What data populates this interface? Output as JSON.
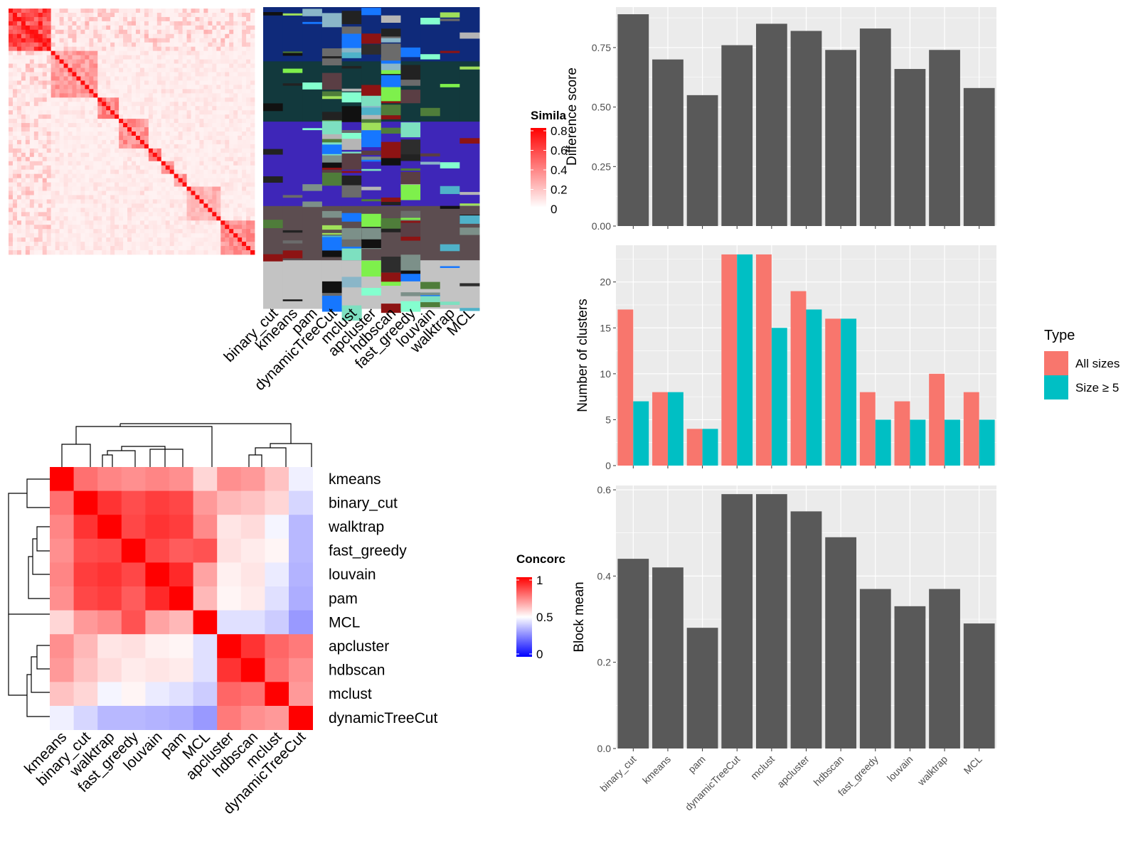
{
  "colors": {
    "panel_bg": "#EBEBEB",
    "bar_gray": "#595959",
    "all_sizes": "#F8766D",
    "size_ge5": "#00BFC4",
    "sim_high": "#FF0000",
    "sim_low": "#FFFFFF",
    "concord_high": "#FF0000",
    "concord_mid": "#FFFFFF",
    "concord_low": "#0000FF"
  },
  "similarity_heatmap": {
    "legend_title": "Simila",
    "legend_ticks": [
      "0.8",
      "0.6",
      "0.4",
      "0.2",
      "0"
    ],
    "method_labels": [
      "binary_cut",
      "kmeans",
      "pam",
      "dynamicTreeCut",
      "mclust",
      "apcluster",
      "hdbscan",
      "fast_greedy",
      "louvain",
      "walktrap",
      "MCL"
    ]
  },
  "concordance_heatmap": {
    "legend_title": "Concorc",
    "legend_ticks": [
      "1",
      "0.5",
      "0"
    ],
    "row_labels": [
      "kmeans",
      "binary_cut",
      "walktrap",
      "fast_greedy",
      "louvain",
      "pam",
      "MCL",
      "apcluster",
      "hdbscan",
      "mclust",
      "dynamicTreeCut"
    ],
    "col_labels": [
      "kmeans",
      "binary_cut",
      "walktrap",
      "fast_greedy",
      "louvain",
      "pam",
      "MCL",
      "apcluster",
      "hdbscan",
      "mclust",
      "dynamicTreeCut"
    ]
  },
  "legend_type": {
    "title": "Type",
    "items": [
      "All sizes",
      "Size ≥ 5"
    ]
  },
  "chart_data": [
    {
      "type": "heatmap",
      "title": "",
      "rows": [
        "kmeans",
        "binary_cut",
        "walktrap",
        "fast_greedy",
        "louvain",
        "pam",
        "MCL",
        "apcluster",
        "hdbscan",
        "mclust",
        "dynamicTreeCut"
      ],
      "cols": [
        "kmeans",
        "binary_cut",
        "walktrap",
        "fast_greedy",
        "louvain",
        "pam",
        "MCL",
        "apcluster",
        "hdbscan",
        "mclust",
        "dynamicTreeCut"
      ],
      "values": [
        [
          1.0,
          0.78,
          0.74,
          0.72,
          0.74,
          0.72,
          0.58,
          0.72,
          0.7,
          0.62,
          0.47
        ],
        [
          0.78,
          1.0,
          0.9,
          0.85,
          0.88,
          0.86,
          0.7,
          0.64,
          0.62,
          0.58,
          0.42
        ],
        [
          0.74,
          0.9,
          1.0,
          0.86,
          0.9,
          0.88,
          0.73,
          0.55,
          0.57,
          0.48,
          0.36
        ],
        [
          0.72,
          0.85,
          0.86,
          1.0,
          0.86,
          0.82,
          0.84,
          0.56,
          0.54,
          0.52,
          0.36
        ],
        [
          0.74,
          0.88,
          0.9,
          0.86,
          1.0,
          0.92,
          0.68,
          0.53,
          0.55,
          0.46,
          0.35
        ],
        [
          0.72,
          0.86,
          0.88,
          0.82,
          0.92,
          1.0,
          0.64,
          0.52,
          0.54,
          0.44,
          0.34
        ],
        [
          0.58,
          0.7,
          0.73,
          0.84,
          0.68,
          0.64,
          1.0,
          0.44,
          0.44,
          0.4,
          0.3
        ],
        [
          0.72,
          0.64,
          0.55,
          0.56,
          0.53,
          0.52,
          0.44,
          1.0,
          0.9,
          0.8,
          0.76
        ],
        [
          0.7,
          0.62,
          0.57,
          0.54,
          0.55,
          0.54,
          0.44,
          0.9,
          1.0,
          0.78,
          0.72
        ],
        [
          0.62,
          0.58,
          0.48,
          0.52,
          0.46,
          0.44,
          0.4,
          0.8,
          0.78,
          1.0,
          0.7
        ],
        [
          0.47,
          0.42,
          0.36,
          0.36,
          0.35,
          0.34,
          0.3,
          0.76,
          0.72,
          0.7,
          1.0
        ]
      ]
    },
    {
      "type": "bar",
      "title": "",
      "categories": [
        "binary_cut",
        "kmeans",
        "pam",
        "dynamicTreeCut",
        "mclust",
        "apcluster",
        "hdbscan",
        "fast_greedy",
        "louvain",
        "walktrap",
        "MCL"
      ],
      "values": [
        0.89,
        0.7,
        0.55,
        0.76,
        0.85,
        0.82,
        0.74,
        0.83,
        0.66,
        0.74,
        0.58
      ],
      "xlabel": "",
      "ylabel": "Difference score",
      "ylim": [
        0,
        0.92
      ],
      "yticks": [
        "0.00",
        "0.25",
        "0.50",
        "0.75"
      ]
    },
    {
      "type": "bar",
      "title": "",
      "categories": [
        "binary_cut",
        "kmeans",
        "pam",
        "dynamicTreeCut",
        "mclust",
        "apcluster",
        "hdbscan",
        "fast_greedy",
        "louvain",
        "walktrap",
        "MCL"
      ],
      "series": [
        {
          "name": "All sizes",
          "values": [
            17,
            8,
            4,
            23,
            23,
            19,
            16,
            8,
            7,
            10,
            8
          ]
        },
        {
          "name": "Size ≥ 5",
          "values": [
            7,
            8,
            4,
            23,
            15,
            17,
            16,
            5,
            5,
            5,
            5
          ]
        }
      ],
      "xlabel": "",
      "ylabel": "Number of clusters",
      "ylim": [
        0,
        24
      ],
      "yticks": [
        "0",
        "5",
        "10",
        "15",
        "20"
      ],
      "legend": "right"
    },
    {
      "type": "bar",
      "title": "",
      "categories": [
        "binary_cut",
        "kmeans",
        "pam",
        "dynamicTreeCut",
        "mclust",
        "apcluster",
        "hdbscan",
        "fast_greedy",
        "louvain",
        "walktrap",
        "MCL"
      ],
      "values": [
        0.44,
        0.42,
        0.28,
        0.59,
        0.59,
        0.55,
        0.49,
        0.37,
        0.33,
        0.37,
        0.29
      ],
      "xlabel": "",
      "ylabel": "Block mean",
      "ylim": [
        0,
        0.61
      ],
      "yticks": [
        "0.0",
        "0.2",
        "0.4",
        "0.6"
      ]
    }
  ]
}
